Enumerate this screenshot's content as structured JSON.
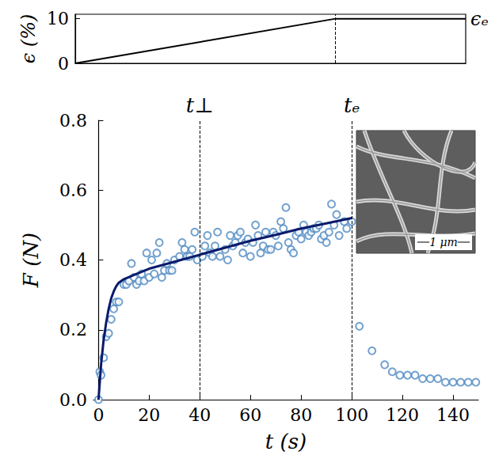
{
  "chart_data": [
    {
      "type": "line",
      "ylabel": "ϵ (%)",
      "x": [
        0,
        100,
        150
      ],
      "values": [
        0,
        10,
        10
      ],
      "color": "#000000",
      "xlim": [
        0,
        150
      ],
      "ylim": [
        0,
        11
      ],
      "yticks": [
        0,
        10
      ],
      "tick_labels": "y",
      "vlines": [
        100
      ],
      "annotations": [
        {
          "x": 150,
          "y": 10,
          "label": "ϵₑ"
        }
      ]
    },
    {
      "type": "scatter",
      "xlabel": "t (s)",
      "ylabel": "F (N)",
      "xlim": [
        -2,
        150
      ],
      "ylim": [
        0,
        0.8
      ],
      "xticks": [
        0,
        20,
        40,
        60,
        80,
        100,
        120,
        140
      ],
      "yticks": [
        {
          "value": 0,
          "label": "0.0"
        },
        {
          "value": 0.2,
          "label": "0.2"
        },
        {
          "value": 0.4,
          "label": "0.4"
        },
        {
          "value": 0.6,
          "label": "0.6"
        },
        {
          "value": 0.8,
          "label": "0.8"
        }
      ],
      "vlines": [
        {
          "x": 40,
          "label": "t⊥"
        },
        {
          "x": 100,
          "label": "tₑ"
        }
      ],
      "inset": {
        "scale_label": "1 μm"
      },
      "series": [
        {
          "type": "scatter",
          "marker": "open circle",
          "color": "#4f8ac2",
          "x": [
            0,
            0.5,
            1,
            2,
            3,
            4,
            5,
            6,
            7,
            8,
            10,
            11,
            12,
            13,
            14,
            15,
            16,
            17,
            18,
            19,
            20,
            21,
            22,
            23,
            24,
            25,
            26,
            27,
            28,
            29,
            30,
            32,
            33,
            34,
            35,
            36,
            37,
            38,
            39,
            41,
            42,
            43,
            44,
            45,
            46,
            47,
            48,
            50,
            51,
            52,
            53,
            54,
            55,
            56,
            57,
            58,
            59,
            60,
            61,
            62,
            63,
            64,
            65,
            66,
            67,
            68,
            69,
            70,
            71,
            72,
            73,
            74,
            75,
            76,
            77,
            78,
            79,
            80,
            81,
            82,
            83,
            84,
            85,
            86,
            87,
            88,
            89,
            90,
            91,
            92,
            93,
            94,
            95,
            97,
            98,
            100,
            103,
            108,
            113,
            116,
            119,
            122,
            125,
            128,
            131,
            134,
            137,
            140,
            143,
            146,
            149
          ],
          "values": [
            0,
            0.08,
            0.07,
            0.12,
            0.18,
            0.19,
            0.23,
            0.26,
            0.28,
            0.28,
            0.33,
            0.33,
            0.34,
            0.39,
            0.35,
            0.33,
            0.34,
            0.36,
            0.34,
            0.42,
            0.35,
            0.4,
            0.36,
            0.42,
            0.45,
            0.35,
            0.37,
            0.39,
            0.37,
            0.37,
            0.4,
            0.41,
            0.45,
            0.43,
            0.41,
            0.41,
            0.43,
            0.48,
            0.4,
            0.41,
            0.44,
            0.47,
            0.42,
            0.41,
            0.44,
            0.48,
            0.41,
            0.43,
            0.4,
            0.47,
            0.44,
            0.45,
            0.47,
            0.48,
            0.42,
            0.45,
            0.46,
            0.41,
            0.45,
            0.5,
            0.47,
            0.42,
            0.44,
            0.48,
            0.43,
            0.43,
            0.48,
            0.47,
            0.44,
            0.51,
            0.49,
            0.55,
            0.45,
            0.43,
            0.42,
            0.47,
            0.48,
            0.46,
            0.5,
            0.48,
            0.47,
            0.48,
            0.49,
            0.49,
            0.5,
            0.46,
            0.47,
            0.45,
            0.48,
            0.56,
            0.5,
            0.53,
            0.47,
            0.51,
            0.49,
            0.51,
            0.21,
            0.14,
            0.1,
            0.08,
            0.07,
            0.07,
            0.07,
            0.06,
            0.06,
            0.06,
            0.05,
            0.05,
            0.05,
            0.05,
            0.05
          ]
        },
        {
          "type": "line",
          "color": "#0b1a6b",
          "x": [
            0,
            1,
            2,
            3,
            4,
            5,
            6,
            7,
            8,
            10,
            15,
            20,
            30,
            40,
            50,
            60,
            70,
            80,
            90,
            100
          ],
          "values": [
            0,
            0.1,
            0.17,
            0.22,
            0.26,
            0.29,
            0.31,
            0.325,
            0.335,
            0.345,
            0.36,
            0.375,
            0.395,
            0.415,
            0.435,
            0.455,
            0.472,
            0.49,
            0.505,
            0.52
          ]
        }
      ]
    }
  ]
}
